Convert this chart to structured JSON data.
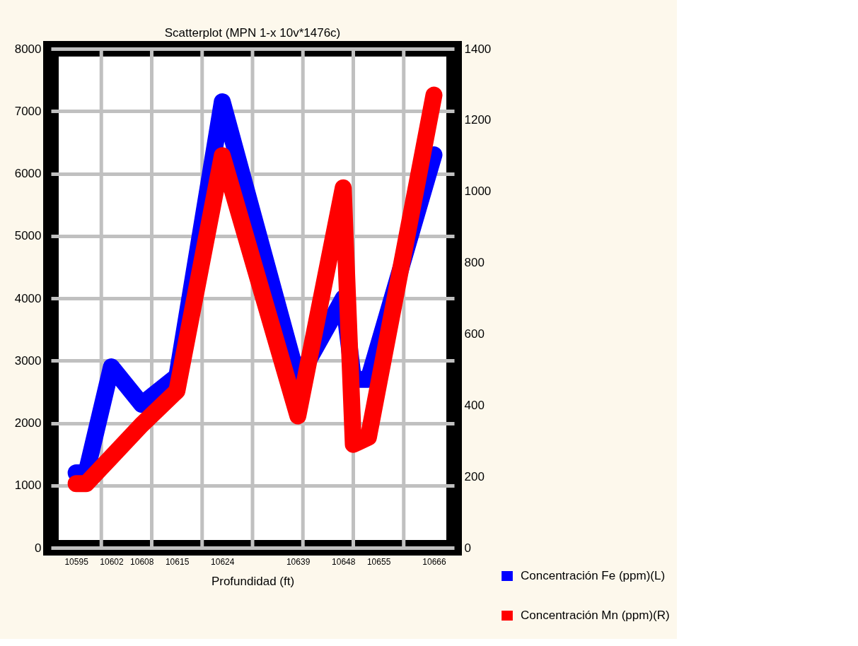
{
  "chart_data": {
    "type": "line",
    "title": "Scatterplot (MPN 1-x 10v*1476c)",
    "xlabel": "Profundidad (ft)",
    "x": [
      10595,
      10597,
      10602,
      10608,
      10615,
      10624,
      10639,
      10648,
      10650,
      10653,
      10666
    ],
    "series": [
      {
        "name": "Concentración Fe (ppm)(L)",
        "color": "#0000ff",
        "values": [
          1200,
          1200,
          2900,
          2300,
          2750,
          7150,
          2700,
          4000,
          2700,
          2700,
          6300
        ]
      },
      {
        "name": "Concentración Mn (ppm)(R)",
        "color": "#ff0000",
        "axis": "y2",
        "values": [
          180,
          180,
          255,
          345,
          440,
          1100,
          370,
          1010,
          290,
          310,
          1270
        ]
      }
    ],
    "xlim": [
      10590,
      10670
    ],
    "xticks": [
      10595,
      {
        "value": 10600,
        "label": null
      },
      10602,
      10608,
      {
        "value": 10610,
        "label": null
      },
      10615,
      {
        "value": 10620,
        "label": null
      },
      10624,
      {
        "value": 10630,
        "label": null
      },
      10639,
      {
        "value": 10640,
        "label": null
      },
      10648,
      {
        "value": 10650,
        "label": null
      },
      10655,
      {
        "value": 10660,
        "label": null
      },
      10666
    ],
    "ylim": [
      0,
      8000
    ],
    "yticks": [
      0,
      1000,
      2000,
      3000,
      4000,
      5000,
      6000,
      7000,
      8000
    ],
    "y2lim": [
      0,
      1400
    ],
    "y2ticks": [
      0,
      200,
      400,
      600,
      800,
      1000,
      1200,
      1400
    ],
    "grid": true,
    "legend": "bottom right",
    "line_style": "solid"
  }
}
